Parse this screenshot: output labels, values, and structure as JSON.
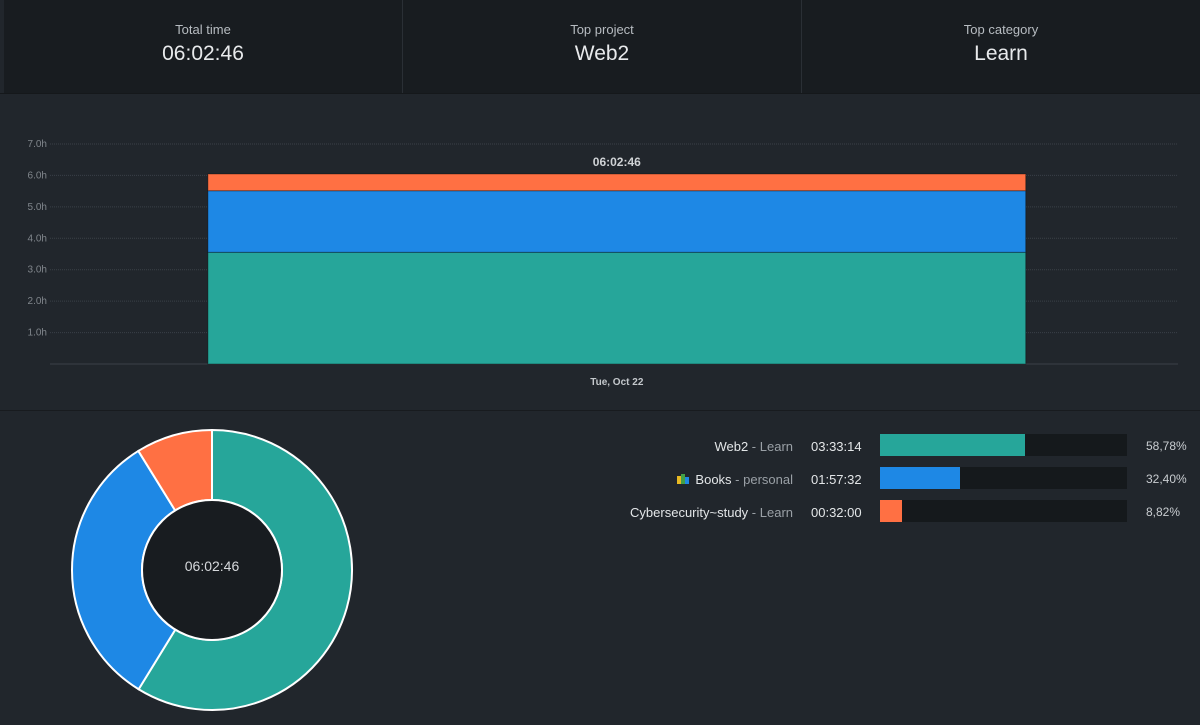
{
  "summary": {
    "total_time": {
      "label": "Total time",
      "value": "06:02:46"
    },
    "top_project": {
      "label": "Top project",
      "value": "Web2"
    },
    "top_category": {
      "label": "Top category",
      "value": "Learn"
    }
  },
  "chart_data": [
    {
      "type": "bar",
      "stacked": true,
      "categories": [
        "Tue, Oct 22"
      ],
      "series": [
        {
          "name": "Web2 - Learn",
          "values": [
            3.554
          ],
          "color": "#26a69a"
        },
        {
          "name": "Books - personal",
          "values": [
            1.959
          ],
          "color": "#1e88e5"
        },
        {
          "name": "Cybersecurity~study - Learn",
          "values": [
            0.533
          ],
          "color": "#ff7043"
        }
      ],
      "total_labels": [
        "06:02:46"
      ],
      "y_ticks": [
        "7.0h",
        "6.0h",
        "5.0h",
        "4.0h",
        "3.0h",
        "2.0h",
        "1.0h"
      ],
      "ylim": [
        0,
        7
      ],
      "grid": true
    },
    {
      "type": "pie",
      "variant": "donut",
      "center_label": "06:02:46",
      "slices": [
        {
          "name": "Web2 - Learn",
          "value": 58.78,
          "color": "#26a69a"
        },
        {
          "name": "Books - personal",
          "value": 32.4,
          "color": "#1e88e5"
        },
        {
          "name": "Cybersecurity~study - Learn",
          "value": 8.82,
          "color": "#ff7043"
        }
      ]
    }
  ],
  "breakdown": [
    {
      "project": "Web2",
      "separator": " - ",
      "category": "Learn",
      "time": "03:33:14",
      "percent": "58,78%",
      "fraction": 0.5878,
      "color": "#26a69a",
      "has_icon": false
    },
    {
      "project": "Books",
      "separator": " - ",
      "category": "personal",
      "time": "01:57:32",
      "percent": "32,40%",
      "fraction": 0.324,
      "color": "#1e88e5",
      "has_icon": true,
      "icon": "books-icon"
    },
    {
      "project": "Cybersecurity~study",
      "separator": " - ",
      "category": "Learn",
      "time": "00:32:00",
      "percent": "8,82%",
      "fraction": 0.0882,
      "color": "#ff7043",
      "has_icon": false
    }
  ],
  "colors": {
    "background": "#21262c",
    "header_background": "#181c20",
    "grid": "#3a4047",
    "track": "#15191c"
  }
}
